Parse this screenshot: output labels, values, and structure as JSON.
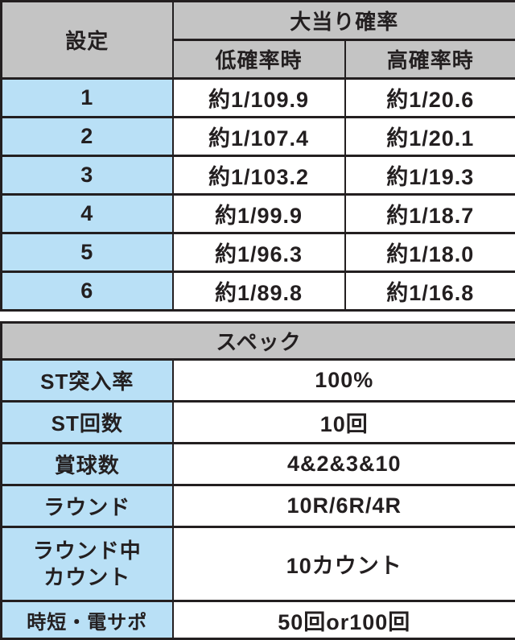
{
  "colors": {
    "header_bg": "#c4c4c4",
    "label_bg": "#b9e0f6",
    "cell_bg": "#ffffff",
    "border": "#231f20",
    "text": "#231f20"
  },
  "chart_data": [
    {
      "type": "table",
      "name": "jackpot-probability-by-setting",
      "header": {
        "setting": "設定",
        "jackpot": "大当り確率",
        "low": "低確率時",
        "high": "高確率時"
      },
      "rows": [
        {
          "setting": "1",
          "low": "約1/109.9",
          "high": "約1/20.6"
        },
        {
          "setting": "2",
          "low": "約1/107.4",
          "high": "約1/20.1"
        },
        {
          "setting": "3",
          "low": "約1/103.2",
          "high": "約1/19.3"
        },
        {
          "setting": "4",
          "low": "約1/99.9",
          "high": "約1/18.7"
        },
        {
          "setting": "5",
          "low": "約1/96.3",
          "high": "約1/18.0"
        },
        {
          "setting": "6",
          "low": "約1/89.8",
          "high": "約1/16.8"
        }
      ]
    },
    {
      "type": "table",
      "name": "machine-spec",
      "title": "スペック",
      "rows": [
        {
          "label": "ST突入率",
          "value": "100%"
        },
        {
          "label": "ST回数",
          "value": "10回"
        },
        {
          "label": "賞球数",
          "value": "4&2&3&10"
        },
        {
          "label": "ラウンド",
          "value": "10R/6R/4R"
        },
        {
          "label": "ラウンド中\nカウント",
          "value": "10カウント"
        },
        {
          "label": "時短・電サポ",
          "value": "50回or100回"
        }
      ]
    }
  ]
}
